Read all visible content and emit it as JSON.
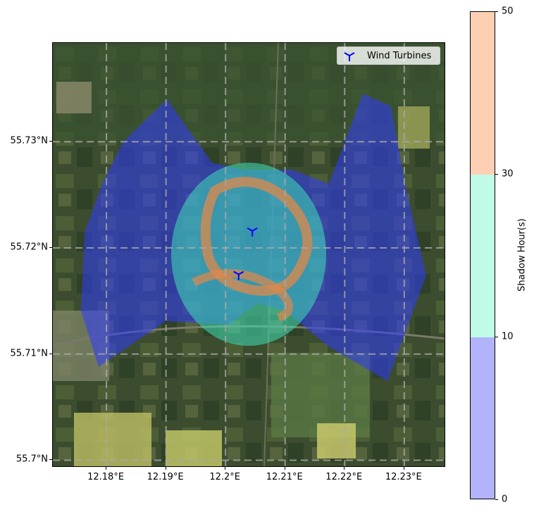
{
  "map": {
    "legend": {
      "label": "Wind Turbines",
      "marker_color": "#0000ff",
      "marker_icon": "tri-down-icon"
    },
    "x_axis": {
      "ticks": [
        "12.18°E",
        "12.19°E",
        "12.2°E",
        "12.21°E",
        "12.22°E",
        "12.23°E"
      ],
      "range": [
        12.171,
        12.237
      ]
    },
    "y_axis": {
      "ticks": [
        "55.73°N",
        "55.72°N",
        "55.71°N",
        "55.7°N"
      ],
      "range": [
        55.6993,
        55.7393
      ]
    },
    "turbines": [
      {
        "lon": 12.2045,
        "lat": 55.7216
      },
      {
        "lon": 12.2022,
        "lat": 55.7175
      }
    ],
    "grid": true,
    "basemap": "satellite-imagery"
  },
  "colorbar": {
    "label": "Shadow Hour(s)",
    "ticks": [
      "0",
      "10",
      "30",
      "50"
    ],
    "bins": [
      {
        "from": 0,
        "to": 10,
        "color": "#b3b3fb"
      },
      {
        "from": 10,
        "to": 30,
        "color": "#c0fbe8"
      },
      {
        "from": 30,
        "to": 50,
        "color": "#fdd0b3"
      }
    ]
  }
}
